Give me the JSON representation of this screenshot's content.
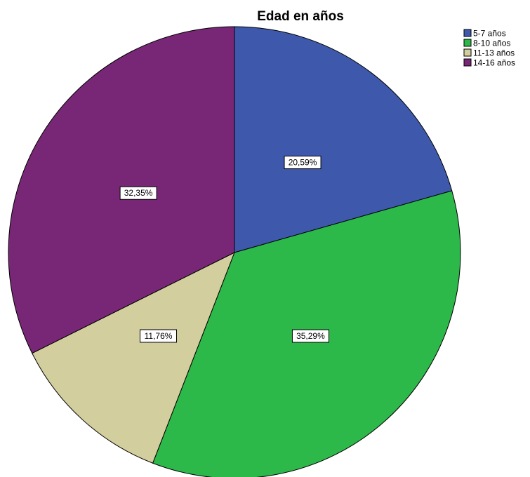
{
  "chart_data": {
    "type": "pie",
    "title": "Edad en años",
    "slices": [
      {
        "name": "5-7 años",
        "value": 20.59,
        "label": "20,59%",
        "color": "#3e58ac"
      },
      {
        "name": "8-10 años",
        "value": 35.29,
        "label": "35,29%",
        "color": "#2db84a"
      },
      {
        "name": "11-13 años",
        "value": 11.76,
        "label": "11,76%",
        "color": "#d3ce9d"
      },
      {
        "name": "14-16 años",
        "value": 32.35,
        "label": "32,35%",
        "color": "#782776"
      }
    ],
    "start_angle_deg": 0,
    "direction": "clockwise",
    "legend_position": "top-right"
  }
}
